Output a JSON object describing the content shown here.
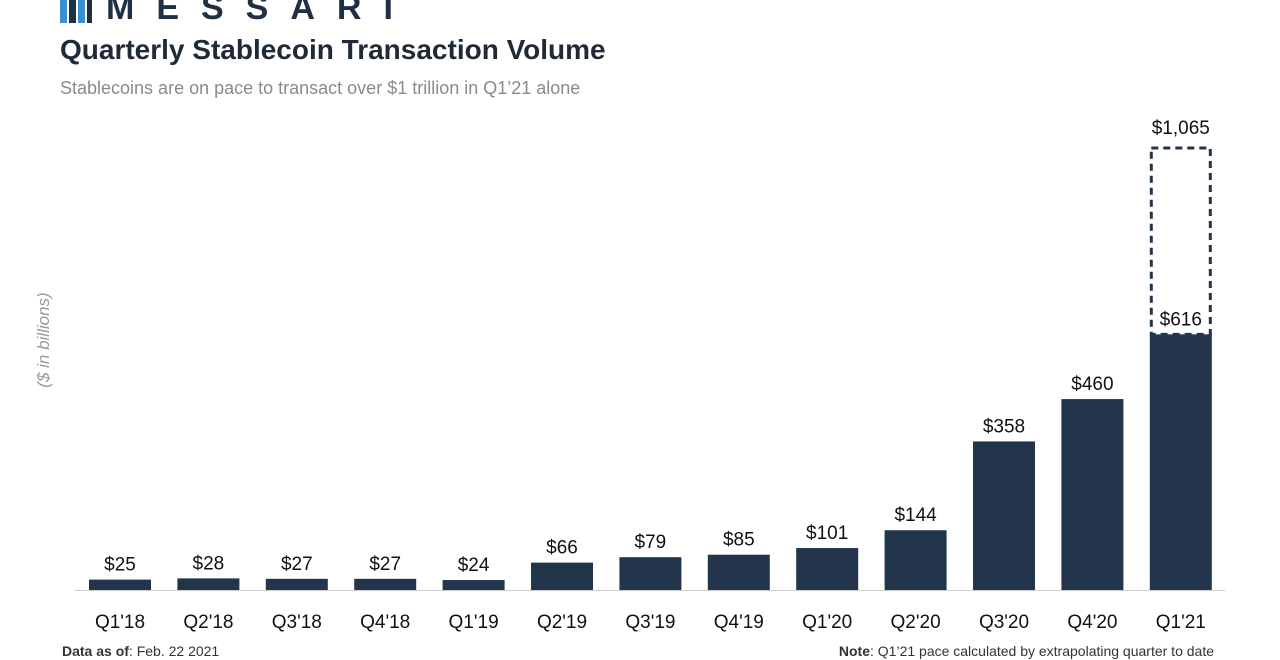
{
  "header": {
    "logo_text": "MESSARI",
    "title": "Quarterly Stablecoin Transaction Volume",
    "subtitle": "Stablecoins are on pace to transact over $1 trillion in Q1’21 alone"
  },
  "footer": {
    "data_as_of_label": "Data as of",
    "data_as_of_value": ": Feb. 22 2021",
    "note_label": "Note",
    "note_value": ": Q1’21 pace calculated by extrapolating quarter to date"
  },
  "colors": {
    "bar": "#22354b",
    "projection_outline": "#22354b",
    "axis": "#cccccc",
    "logo_accent": "#3a8fd0"
  },
  "icons": {
    "logo": "messari-logo-icon"
  },
  "chart_data": {
    "type": "bar",
    "ylabel": "($ in billions)",
    "categories": [
      "Q1'18",
      "Q2'18",
      "Q3'18",
      "Q4'18",
      "Q1'19",
      "Q2'19",
      "Q3'19",
      "Q4'19",
      "Q1'20",
      "Q2'20",
      "Q3'20",
      "Q4'20",
      "Q1'21"
    ],
    "values": [
      25,
      28,
      27,
      27,
      24,
      66,
      79,
      85,
      101,
      144,
      358,
      460,
      616
    ],
    "value_labels": [
      "$25",
      "$28",
      "$27",
      "$27",
      "$24",
      "$66",
      "$79",
      "$85",
      "$101",
      "$144",
      "$358",
      "$460",
      "$616"
    ],
    "projection": {
      "category": "Q1'21",
      "value": 1065,
      "label": "$1,065",
      "style": "dashed-outline"
    },
    "ylim": [
      0,
      1065
    ],
    "grid": false
  }
}
